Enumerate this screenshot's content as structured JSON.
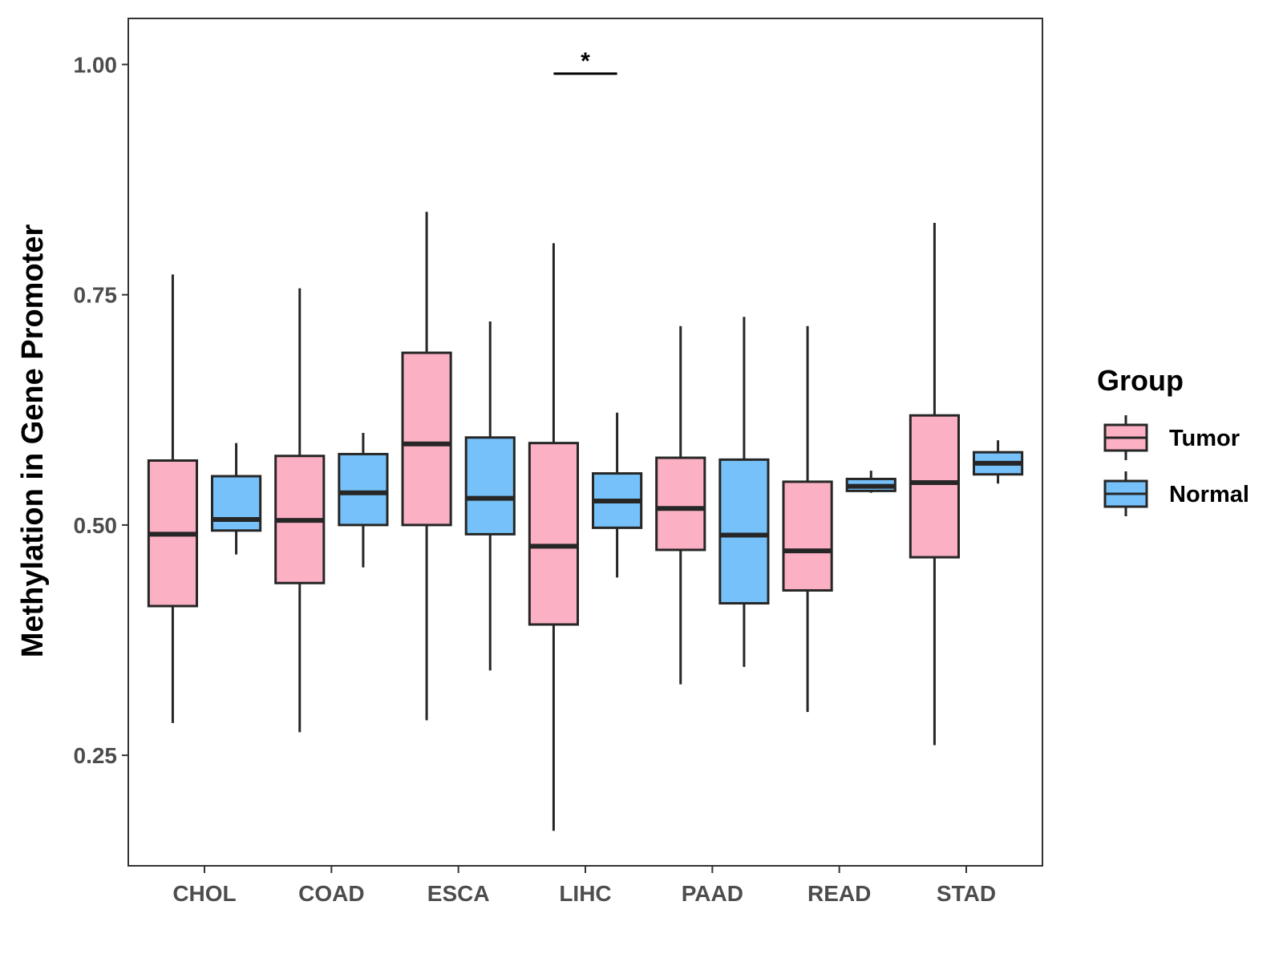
{
  "chart_data": {
    "type": "boxplot",
    "title": "",
    "xlabel": "",
    "ylabel": "Methylation in Gene Promoter",
    "ylim": [
      0.13,
      1.05
    ],
    "yticks": [
      0.25,
      0.5,
      0.75,
      1.0
    ],
    "ytick_labels": [
      "0.25",
      "0.50",
      "0.75",
      "1.00"
    ],
    "categories": [
      "CHOL",
      "COAD",
      "ESCA",
      "LIHC",
      "PAAD",
      "READ",
      "STAD"
    ],
    "legend": {
      "title": "Group",
      "placement": "right",
      "entries": [
        {
          "name": "Tumor",
          "color": "#FBB0C3"
        },
        {
          "name": "Normal",
          "color": "#76C1F9"
        }
      ]
    },
    "series": [
      {
        "name": "Tumor",
        "color": "#FBB0C3",
        "boxes": [
          {
            "category": "CHOL",
            "min": 0.285,
            "q1": 0.412,
            "median": 0.49,
            "q3": 0.57,
            "max": 0.772
          },
          {
            "category": "COAD",
            "min": 0.275,
            "q1": 0.437,
            "median": 0.505,
            "q3": 0.575,
            "max": 0.757
          },
          {
            "category": "ESCA",
            "min": 0.288,
            "q1": 0.5,
            "median": 0.588,
            "q3": 0.687,
            "max": 0.84
          },
          {
            "category": "LIHC",
            "min": 0.168,
            "q1": 0.392,
            "median": 0.477,
            "q3": 0.589,
            "max": 0.806
          },
          {
            "category": "PAAD",
            "min": 0.327,
            "q1": 0.473,
            "median": 0.518,
            "q3": 0.573,
            "max": 0.716
          },
          {
            "category": "READ",
            "min": 0.297,
            "q1": 0.429,
            "median": 0.472,
            "q3": 0.547,
            "max": 0.716
          },
          {
            "category": "STAD",
            "min": 0.261,
            "q1": 0.465,
            "median": 0.546,
            "q3": 0.619,
            "max": 0.828
          }
        ]
      },
      {
        "name": "Normal",
        "color": "#76C1F9",
        "boxes": [
          {
            "category": "CHOL",
            "min": 0.468,
            "q1": 0.494,
            "median": 0.506,
            "q3": 0.553,
            "max": 0.589
          },
          {
            "category": "COAD",
            "min": 0.454,
            "q1": 0.5,
            "median": 0.535,
            "q3": 0.577,
            "max": 0.6
          },
          {
            "category": "ESCA",
            "min": 0.342,
            "q1": 0.49,
            "median": 0.529,
            "q3": 0.595,
            "max": 0.721
          },
          {
            "category": "LIHC",
            "min": 0.443,
            "q1": 0.497,
            "median": 0.526,
            "q3": 0.556,
            "max": 0.622
          },
          {
            "category": "PAAD",
            "min": 0.346,
            "q1": 0.415,
            "median": 0.489,
            "q3": 0.571,
            "max": 0.726
          },
          {
            "category": "READ",
            "min": 0.535,
            "q1": 0.537,
            "median": 0.542,
            "q3": 0.55,
            "max": 0.559
          },
          {
            "category": "STAD",
            "min": 0.545,
            "q1": 0.555,
            "median": 0.567,
            "q3": 0.579,
            "max": 0.592
          }
        ]
      }
    ],
    "annotations": [
      {
        "text": "*",
        "category": "LIHC",
        "bracket_y": 0.99
      }
    ]
  }
}
